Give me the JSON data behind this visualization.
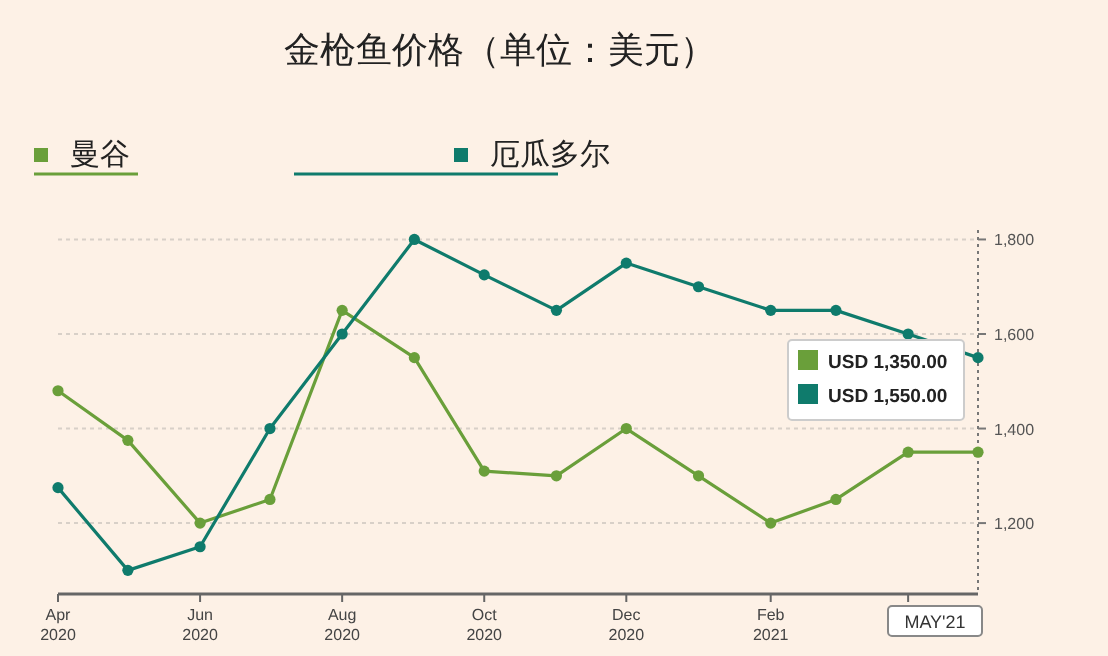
{
  "chart_data": {
    "type": "line",
    "title": "金枪鱼价格（单位：美元）",
    "x": [
      "2020-04",
      "2020-05",
      "2020-06",
      "2020-07",
      "2020-08",
      "2020-09",
      "2020-10",
      "2020-11",
      "2020-12",
      "2021-01",
      "2021-02",
      "2021-03",
      "2021-04",
      "2021-05"
    ],
    "series": [
      {
        "name": "曼谷",
        "color": "#6a9f3a",
        "values": [
          1480,
          1375,
          1200,
          1250,
          1650,
          1550,
          1310,
          1300,
          1400,
          1300,
          1200,
          1250,
          1350,
          1350
        ]
      },
      {
        "name": "厄瓜多尔",
        "color": "#0f7b6c",
        "values": [
          1275,
          1100,
          1150,
          1400,
          1600,
          1800,
          1725,
          1650,
          1750,
          1700,
          1650,
          1650,
          1600,
          1550
        ]
      }
    ],
    "xlim": [
      "2020-04",
      "2021-05"
    ],
    "xticks": [
      {
        "value": "2020-04",
        "label": "Apr\n2020"
      },
      {
        "value": "2020-06",
        "label": "Jun\n2020"
      },
      {
        "value": "2020-08",
        "label": "Aug\n2020"
      },
      {
        "value": "2020-10",
        "label": "Oct\n2020"
      },
      {
        "value": "2020-12",
        "label": "Dec\n2020"
      },
      {
        "value": "2021-02",
        "label": "Feb\n2021"
      },
      {
        "value": "2021-04",
        "label": null
      }
    ],
    "ylim": [
      1050,
      1820
    ],
    "yticks": [
      {
        "value": 1200,
        "label": "1,200"
      },
      {
        "value": 1400,
        "label": "1,400"
      },
      {
        "value": 1600,
        "label": "1,600"
      },
      {
        "value": 1800,
        "label": "1,800"
      }
    ],
    "ref_lines": [
      {
        "axis": "x",
        "value": "2021-05",
        "label": "MAY'21",
        "line_style": "dotted",
        "color": "#777777"
      }
    ],
    "annotations": [
      "USD 1,350.00",
      "USD 1,550.00"
    ],
    "grid": "y",
    "legend": "top",
    "marker": "circle",
    "line_style": "solid"
  }
}
